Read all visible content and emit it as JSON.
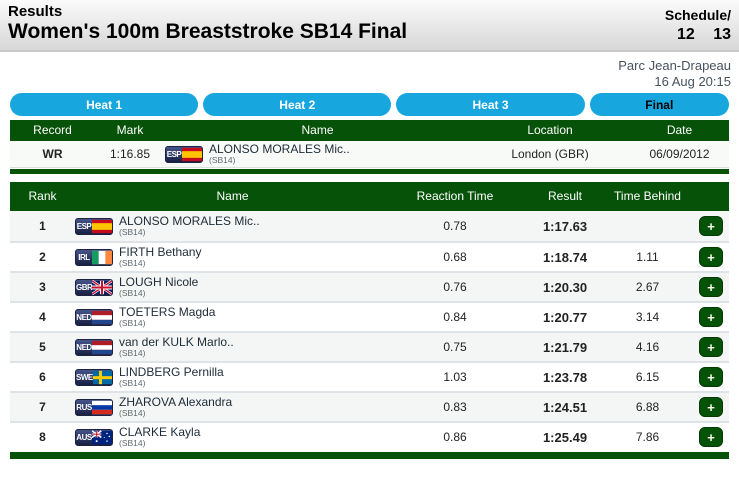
{
  "header": {
    "results_label": "Results",
    "title": "Women's 100m Breaststroke SB14 Final",
    "schedule_label": "Schedule/",
    "schedule_pages": [
      "12",
      "13"
    ]
  },
  "meta": {
    "venue": "Parc Jean-Drapeau",
    "datetime": "16 Aug 20:15"
  },
  "tabs": [
    {
      "label": "Heat 1",
      "selected": false
    },
    {
      "label": "Heat 2",
      "selected": false
    },
    {
      "label": "Heat 3",
      "selected": false
    },
    {
      "label": "Final",
      "selected": true
    }
  ],
  "record": {
    "headers": [
      "Record",
      "Mark",
      "Name",
      "Location",
      "Date"
    ],
    "row": {
      "type": "WR",
      "mark": "1:16.85",
      "noc": "ESP",
      "name": "ALONSO MORALES Mic..",
      "sport_class": "(SB14)",
      "location": "London (GBR)",
      "date": "06/09/2012"
    }
  },
  "results": {
    "headers": [
      "Rank",
      "Name",
      "Reaction Time",
      "Result",
      "Time Behind"
    ],
    "expand_button_label": "+",
    "rows": [
      {
        "rank": "1",
        "noc": "ESP",
        "name": "ALONSO MORALES Mic..",
        "sport_class": "(SB14)",
        "reaction": "0.78",
        "result": "1:17.63",
        "behind": ""
      },
      {
        "rank": "2",
        "noc": "IRL",
        "name": "FIRTH Bethany",
        "sport_class": "(SB14)",
        "reaction": "0.68",
        "result": "1:18.74",
        "behind": "1.11"
      },
      {
        "rank": "3",
        "noc": "GBR",
        "name": "LOUGH Nicole",
        "sport_class": "(SB14)",
        "reaction": "0.76",
        "result": "1:20.30",
        "behind": "2.67"
      },
      {
        "rank": "4",
        "noc": "NED",
        "name": "TOETERS Magda",
        "sport_class": "(SB14)",
        "reaction": "0.84",
        "result": "1:20.77",
        "behind": "3.14"
      },
      {
        "rank": "5",
        "noc": "NED",
        "name": "van der KULK Marlo..",
        "sport_class": "(SB14)",
        "reaction": "0.75",
        "result": "1:21.79",
        "behind": "4.16"
      },
      {
        "rank": "6",
        "noc": "SWE",
        "name": "LINDBERG Pernilla",
        "sport_class": "(SB14)",
        "reaction": "1.03",
        "result": "1:23.78",
        "behind": "6.15"
      },
      {
        "rank": "7",
        "noc": "RUS",
        "name": "ZHAROVA Alexandra",
        "sport_class": "(SB14)",
        "reaction": "0.83",
        "result": "1:24.51",
        "behind": "6.88"
      },
      {
        "rank": "8",
        "noc": "AUS",
        "name": "CLARKE Kayla",
        "sport_class": "(SB14)",
        "reaction": "0.86",
        "result": "1:25.49",
        "behind": "7.86"
      }
    ]
  },
  "colors": {
    "table_header_green": "#075209",
    "tab_cyan": "#18a6de",
    "venue_text": "#46525e"
  }
}
